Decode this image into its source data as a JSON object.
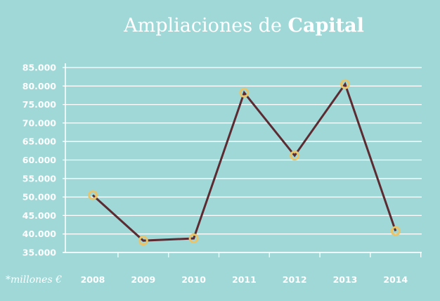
{
  "chart_data": {
    "type": "line",
    "title_prefix": "Ampliaciones de ",
    "title_bold": "Capital",
    "unit_note": "*millones €",
    "categories": [
      "2008",
      "2009",
      "2010",
      "2011",
      "2012",
      "2013",
      "2014"
    ],
    "values": [
      50500,
      38200,
      38800,
      78200,
      61200,
      80500,
      40800
    ],
    "ylim": [
      35000,
      85000
    ],
    "yticks": [
      35000,
      40000,
      45000,
      50000,
      55000,
      60000,
      65000,
      70000,
      75000,
      80000,
      85000
    ],
    "ytick_labels": [
      "35.000",
      "40.000",
      "45.000",
      "50.000",
      "55.000",
      "60.000",
      "65.000",
      "70.000",
      "75.000",
      "80.000",
      "85.000"
    ],
    "grid": true,
    "colors": {
      "background": "#a0d8d8",
      "line": "#5c2b32",
      "marker": "#e9c46a",
      "grid": "#ffffff",
      "text": "#ffffff"
    }
  }
}
